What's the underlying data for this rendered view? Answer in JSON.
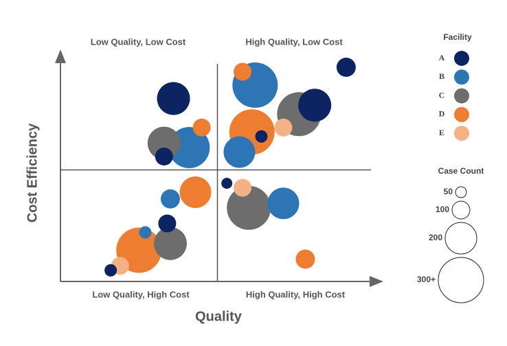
{
  "chart_data": {
    "type": "scatter",
    "x_label": "Quality",
    "y_label": "Cost Efficiency",
    "quadrant_labels": {
      "top_left": "Low Quality, Low Cost",
      "top_right": "High Quality, Low Cost",
      "bottom_left": "Low Quality, High Cost",
      "bottom_right": "High Quality, High Cost"
    },
    "xlim": [
      0,
      100
    ],
    "ylim": [
      0,
      100
    ],
    "x_divider": 50,
    "y_divider": 50,
    "legend_title": "Facility",
    "size_legend_title": "Case Count",
    "size_legend": [
      50,
      100,
      200,
      {
        "value": 300,
        "label": "300+"
      }
    ],
    "series": [
      {
        "name": "A",
        "color": "#0d2463",
        "x": [
          36,
          33,
          91,
          81,
          64,
          53,
          34,
          16
        ],
        "values": [
          82,
          56,
          96,
          79,
          65,
          44,
          26,
          5
        ],
        "sizes": [
          210,
          100,
          110,
          210,
          60,
          50,
          100,
          60
        ]
      },
      {
        "name": "B",
        "color": "#2e75b6",
        "x": [
          62,
          41,
          57,
          35,
          71,
          27
        ],
        "values": [
          88,
          60,
          58,
          37,
          35,
          22
        ],
        "sizes": [
          300,
          270,
          200,
          110,
          200,
          60
        ]
      },
      {
        "name": "C",
        "color": "#6d6d6d",
        "x": [
          76,
          33,
          60,
          35
        ],
        "values": [
          75,
          62,
          33,
          17
        ],
        "sizes": [
          290,
          210,
          290,
          210
        ]
      },
      {
        "name": "D",
        "color": "#ed7d31",
        "x": [
          58,
          45,
          61,
          43,
          25,
          78
        ],
        "values": [
          94,
          69,
          67,
          40,
          14,
          10
        ],
        "sizes": [
          100,
          100,
          300,
          200,
          300,
          110
        ]
      },
      {
        "name": "E",
        "color": "#f4b183",
        "x": [
          71,
          58,
          19
        ],
        "values": [
          69,
          42,
          7
        ],
        "sizes": [
          100,
          100,
          100
        ]
      }
    ]
  }
}
